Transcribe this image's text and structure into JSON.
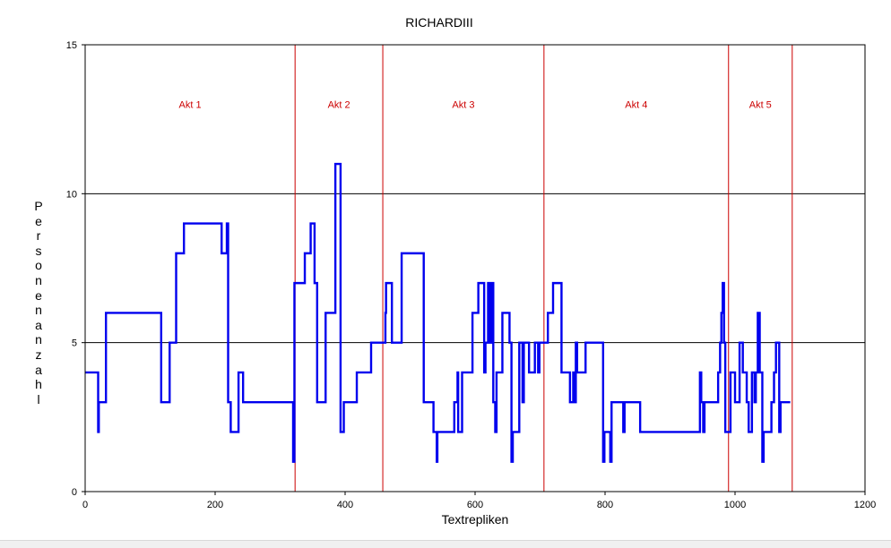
{
  "chart_data": {
    "type": "line",
    "title": "RICHARDIII",
    "xlabel": "Textrepliken",
    "ylabel": "Personenanzahl",
    "xlim": [
      0,
      1200
    ],
    "ylim": [
      0,
      15
    ],
    "xticks": [
      0,
      200,
      400,
      600,
      800,
      1000,
      1200
    ],
    "yticks": [
      0,
      5,
      10,
      15
    ],
    "grid_y": [
      5,
      10
    ],
    "line_color": "#0000ee",
    "act_color": "#cc0000",
    "acts": [
      {
        "label": "Akt 1",
        "start": 0,
        "end": 323
      },
      {
        "label": "Akt 2",
        "start": 323,
        "end": 458
      },
      {
        "label": "Akt 3",
        "start": 458,
        "end": 706
      },
      {
        "label": "Akt 4",
        "start": 706,
        "end": 990
      },
      {
        "label": "Akt 5",
        "start": 990,
        "end": 1088
      }
    ],
    "act_label_y": 13,
    "series": [
      {
        "points": [
          [
            0,
            4
          ],
          [
            20,
            4
          ],
          [
            20,
            2
          ],
          [
            21,
            2
          ],
          [
            21,
            3
          ],
          [
            32,
            3
          ],
          [
            32,
            6
          ],
          [
            117,
            6
          ],
          [
            117,
            3
          ],
          [
            130,
            3
          ],
          [
            130,
            5
          ],
          [
            140,
            5
          ],
          [
            140,
            8
          ],
          [
            152,
            8
          ],
          [
            152,
            9
          ],
          [
            210,
            9
          ],
          [
            210,
            8
          ],
          [
            218,
            8
          ],
          [
            218,
            9
          ],
          [
            220,
            9
          ],
          [
            220,
            3
          ],
          [
            224,
            3
          ],
          [
            224,
            2
          ],
          [
            236,
            2
          ],
          [
            236,
            4
          ],
          [
            243,
            4
          ],
          [
            243,
            3
          ],
          [
            320,
            3
          ],
          [
            320,
            1
          ],
          [
            322,
            1
          ],
          [
            322,
            7
          ],
          [
            338,
            7
          ],
          [
            338,
            8
          ],
          [
            347,
            8
          ],
          [
            347,
            9
          ],
          [
            353,
            9
          ],
          [
            353,
            7
          ],
          [
            357,
            7
          ],
          [
            357,
            3
          ],
          [
            370,
            3
          ],
          [
            370,
            6
          ],
          [
            385,
            6
          ],
          [
            385,
            11
          ],
          [
            393,
            11
          ],
          [
            393,
            2
          ],
          [
            398,
            2
          ],
          [
            398,
            3
          ],
          [
            418,
            3
          ],
          [
            418,
            4
          ],
          [
            440,
            4
          ],
          [
            440,
            5
          ],
          [
            462,
            5
          ],
          [
            462,
            6
          ],
          [
            463,
            6
          ],
          [
            463,
            7
          ],
          [
            472,
            7
          ],
          [
            472,
            5
          ],
          [
            487,
            5
          ],
          [
            487,
            8
          ],
          [
            521,
            8
          ],
          [
            521,
            3
          ],
          [
            536,
            3
          ],
          [
            536,
            2
          ],
          [
            541,
            2
          ],
          [
            541,
            1
          ],
          [
            542,
            1
          ],
          [
            542,
            2
          ],
          [
            568,
            2
          ],
          [
            568,
            3
          ],
          [
            573,
            3
          ],
          [
            573,
            4
          ],
          [
            574,
            4
          ],
          [
            574,
            2
          ],
          [
            580,
            2
          ],
          [
            580,
            4
          ],
          [
            596,
            4
          ],
          [
            596,
            6
          ],
          [
            605,
            6
          ],
          [
            605,
            7
          ],
          [
            614,
            7
          ],
          [
            614,
            4
          ],
          [
            616,
            4
          ],
          [
            616,
            5
          ],
          [
            620,
            5
          ],
          [
            620,
            7
          ],
          [
            623,
            7
          ],
          [
            623,
            5
          ],
          [
            625,
            5
          ],
          [
            625,
            7
          ],
          [
            628,
            7
          ],
          [
            628,
            3
          ],
          [
            631,
            3
          ],
          [
            631,
            2
          ],
          [
            633,
            2
          ],
          [
            633,
            4
          ],
          [
            642,
            4
          ],
          [
            642,
            6
          ],
          [
            653,
            6
          ],
          [
            653,
            5
          ],
          [
            656,
            5
          ],
          [
            656,
            1
          ],
          [
            658,
            1
          ],
          [
            658,
            2
          ],
          [
            668,
            2
          ],
          [
            668,
            5
          ],
          [
            673,
            5
          ],
          [
            673,
            3
          ],
          [
            675,
            3
          ],
          [
            675,
            5
          ],
          [
            683,
            5
          ],
          [
            683,
            4
          ],
          [
            692,
            4
          ],
          [
            692,
            5
          ],
          [
            697,
            5
          ],
          [
            697,
            4
          ],
          [
            699,
            4
          ],
          [
            699,
            5
          ],
          [
            712,
            5
          ],
          [
            712,
            6
          ],
          [
            720,
            6
          ],
          [
            720,
            7
          ],
          [
            733,
            7
          ],
          [
            733,
            4
          ],
          [
            746,
            4
          ],
          [
            746,
            3
          ],
          [
            751,
            3
          ],
          [
            751,
            4
          ],
          [
            752,
            4
          ],
          [
            752,
            3
          ],
          [
            755,
            3
          ],
          [
            755,
            5
          ],
          [
            757,
            5
          ],
          [
            757,
            4
          ],
          [
            770,
            4
          ],
          [
            770,
            5
          ],
          [
            797,
            5
          ],
          [
            797,
            1
          ],
          [
            799,
            1
          ],
          [
            799,
            2
          ],
          [
            808,
            2
          ],
          [
            808,
            1
          ],
          [
            810,
            1
          ],
          [
            810,
            3
          ],
          [
            828,
            3
          ],
          [
            828,
            2
          ],
          [
            830,
            2
          ],
          [
            830,
            3
          ],
          [
            854,
            3
          ],
          [
            854,
            2
          ],
          [
            946,
            2
          ],
          [
            946,
            4
          ],
          [
            948,
            4
          ],
          [
            948,
            3
          ],
          [
            951,
            3
          ],
          [
            951,
            2
          ],
          [
            953,
            2
          ],
          [
            953,
            3
          ],
          [
            974,
            3
          ],
          [
            974,
            4
          ],
          [
            977,
            4
          ],
          [
            977,
            5
          ],
          [
            979,
            5
          ],
          [
            979,
            6
          ],
          [
            981,
            6
          ],
          [
            981,
            7
          ],
          [
            983,
            7
          ],
          [
            983,
            5
          ],
          [
            985,
            5
          ],
          [
            985,
            2
          ],
          [
            993,
            2
          ],
          [
            993,
            4
          ],
          [
            1000,
            4
          ],
          [
            1000,
            3
          ],
          [
            1007,
            3
          ],
          [
            1007,
            5
          ],
          [
            1012,
            5
          ],
          [
            1012,
            4
          ],
          [
            1018,
            4
          ],
          [
            1018,
            3
          ],
          [
            1021,
            3
          ],
          [
            1021,
            2
          ],
          [
            1026,
            2
          ],
          [
            1026,
            4
          ],
          [
            1030,
            4
          ],
          [
            1030,
            3
          ],
          [
            1032,
            3
          ],
          [
            1032,
            4
          ],
          [
            1035,
            4
          ],
          [
            1035,
            6
          ],
          [
            1038,
            6
          ],
          [
            1038,
            4
          ],
          [
            1042,
            4
          ],
          [
            1042,
            1
          ],
          [
            1044,
            1
          ],
          [
            1044,
            2
          ],
          [
            1056,
            2
          ],
          [
            1056,
            3
          ],
          [
            1060,
            3
          ],
          [
            1060,
            4
          ],
          [
            1063,
            4
          ],
          [
            1063,
            5
          ],
          [
            1068,
            5
          ],
          [
            1068,
            2
          ],
          [
            1070,
            2
          ],
          [
            1070,
            3
          ],
          [
            1085,
            3
          ]
        ]
      }
    ]
  }
}
